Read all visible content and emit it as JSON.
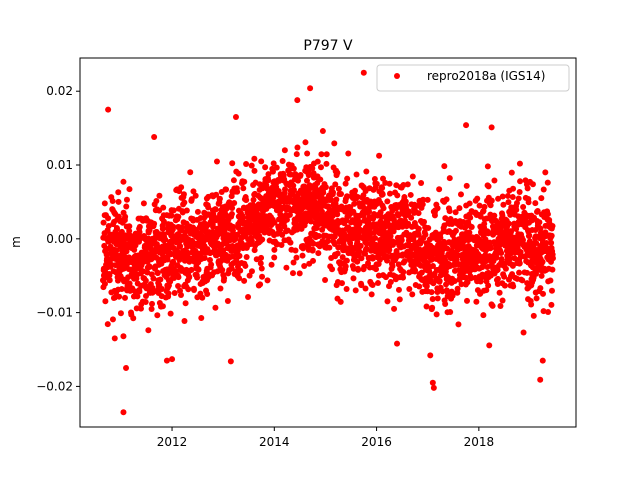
{
  "chart_data": {
    "type": "scatter",
    "title": "P797 V",
    "xlabel": "",
    "ylabel": "m",
    "xlim": [
      2010.2,
      2019.9
    ],
    "ylim": [
      -0.0255,
      0.0245
    ],
    "x_ticks": [
      2012,
      2014,
      2016,
      2018
    ],
    "x_tick_labels": [
      "2012",
      "2014",
      "2016",
      "2018"
    ],
    "y_ticks": [
      -0.02,
      -0.01,
      0.0,
      0.01,
      0.02
    ],
    "y_tick_labels": [
      "−0.02",
      "−0.01",
      "0.00",
      "0.01",
      "0.02"
    ],
    "grid": false,
    "legend_position": "upper right",
    "series": [
      {
        "name": "repro2018a (IGS14)",
        "color": "#ff0000",
        "marker": "circle",
        "x_range": [
          2010.65,
          2019.45
        ],
        "trend_knots": {
          "x": [
            2010.65,
            2011.5,
            2012.5,
            2013.2,
            2014.0,
            2014.8,
            2015.3,
            2016.0,
            2016.7,
            2017.2,
            2018.0,
            2018.7,
            2019.45
          ],
          "y": [
            -0.002,
            -0.0025,
            -0.001,
            0.001,
            0.004,
            0.004,
            0.001,
            0.0015,
            0.0,
            -0.002,
            -0.001,
            0.0,
            -0.002
          ]
        },
        "scatter_std": 0.0035,
        "outliers": [
          [
            2010.75,
            0.0175
          ],
          [
            2011.05,
            -0.0235
          ],
          [
            2011.1,
            -0.0175
          ],
          [
            2011.05,
            -0.0132
          ],
          [
            2011.65,
            0.0138
          ],
          [
            2011.9,
            -0.0165
          ],
          [
            2012.0,
            -0.0163
          ],
          [
            2013.15,
            -0.0166
          ],
          [
            2013.25,
            0.0165
          ],
          [
            2014.45,
            0.0188
          ],
          [
            2014.7,
            0.0204
          ],
          [
            2014.95,
            0.0146
          ],
          [
            2015.75,
            0.0225
          ],
          [
            2016.4,
            -0.0142
          ],
          [
            2017.1,
            -0.0195
          ],
          [
            2017.12,
            -0.0202
          ],
          [
            2017.05,
            -0.0158
          ],
          [
            2017.75,
            0.0154
          ],
          [
            2018.25,
            0.0151
          ],
          [
            2019.2,
            -0.0191
          ],
          [
            2019.25,
            -0.0165
          ],
          [
            2019.3,
            0.009
          ]
        ]
      }
    ]
  }
}
